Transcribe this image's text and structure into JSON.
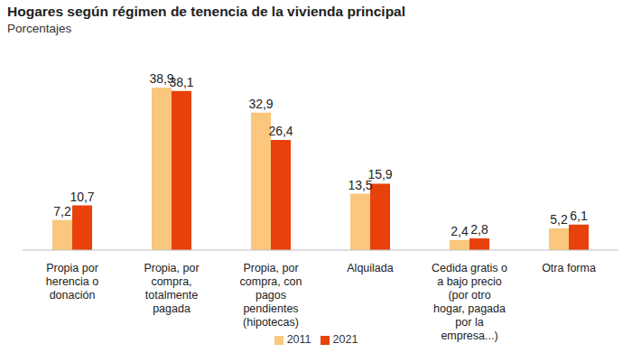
{
  "chart_data": {
    "type": "bar",
    "title": "Hogares según régimen de tenencia de la vivienda principal",
    "subtitle": "Porcentajes",
    "categories": [
      "Propia por herencia o donación",
      "Propia, por compra, totalmente pagada",
      "Propia, por compra, con pagos pendientes (hipotecas)",
      "Alquilada",
      "Cedida gratis o a bajo precio (por otro hogar, pagada por la empresa...)",
      "Otra forma"
    ],
    "series": [
      {
        "name": "2011",
        "color": "#fac77c",
        "values": [
          7.2,
          38.9,
          32.9,
          13.5,
          2.4,
          5.2
        ],
        "value_labels": [
          "7,2",
          "38,9",
          "32,9",
          "13,5",
          "2,4",
          "5,2"
        ]
      },
      {
        "name": "2021",
        "color": "#e8410c",
        "values": [
          10.7,
          38.1,
          26.4,
          15.9,
          2.8,
          6.1
        ],
        "value_labels": [
          "10,7",
          "38,1",
          "26,4",
          "15,9",
          "2,8",
          "6,1"
        ]
      }
    ],
    "ylim": [
      0,
      40
    ],
    "data_labels": true,
    "tick_labels": "x",
    "legend": "bottom",
    "grid": false
  }
}
